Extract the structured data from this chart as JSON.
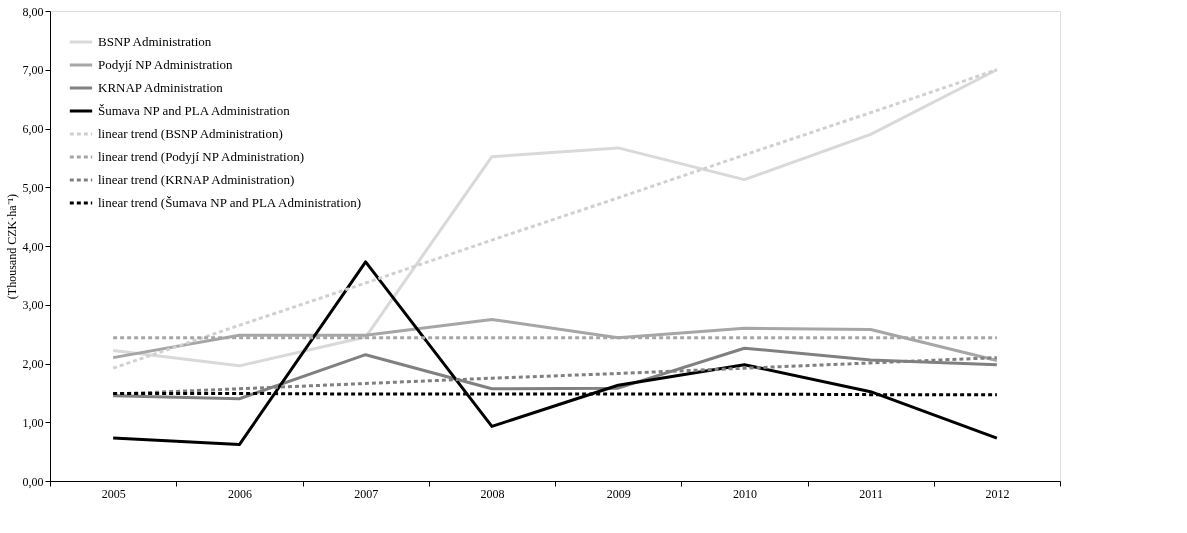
{
  "chart_data": {
    "type": "line",
    "ylabel": "(Thousand CZK·ha⁻¹)",
    "categories": [
      "2005",
      "2006",
      "2007",
      "2008",
      "2009",
      "2010",
      "2011",
      "2012"
    ],
    "series": [
      {
        "name": "BSNP Administration",
        "color": "#d9d9d9",
        "values": [
          2.22,
          1.96,
          2.45,
          5.52,
          5.67,
          5.13,
          5.9,
          7.0
        ]
      },
      {
        "name": "Podyjí NP Administration",
        "color": "#a6a6a6",
        "values": [
          2.1,
          2.48,
          2.48,
          2.75,
          2.44,
          2.6,
          2.58,
          2.05
        ]
      },
      {
        "name": "KRNAP Administration",
        "color": "#808080",
        "values": [
          1.45,
          1.4,
          2.15,
          1.57,
          1.58,
          2.26,
          2.06,
          1.98
        ]
      },
      {
        "name": "Šumava NP and PLA Administration",
        "color": "#000000",
        "values": [
          0.73,
          0.62,
          3.73,
          0.93,
          1.63,
          1.98,
          1.52,
          0.73
        ]
      },
      {
        "name": "linear trend (BSNP Administration)",
        "color": "#d0d0d0",
        "line_style": "dashed",
        "values": [
          1.92,
          2.65,
          3.37,
          4.1,
          4.82,
          5.55,
          6.27,
          7.0
        ]
      },
      {
        "name": "linear trend (Podyjí NP Administration)",
        "color": "#a6a6a6",
        "line_style": "dashed",
        "values": [
          2.44,
          2.44,
          2.44,
          2.44,
          2.44,
          2.44,
          2.44,
          2.44
        ]
      },
      {
        "name": "linear trend (KRNAP Administration)",
        "color": "#808080",
        "line_style": "dashed",
        "values": [
          1.48,
          1.57,
          1.66,
          1.75,
          1.83,
          1.92,
          2.01,
          2.1
        ]
      },
      {
        "name": "linear trend (Šumava NP and PLA Administration)",
        "color": "#000000",
        "line_style": "dashed",
        "values": [
          1.49,
          1.49,
          1.48,
          1.48,
          1.48,
          1.48,
          1.47,
          1.47
        ]
      }
    ],
    "ylim": [
      0,
      8
    ],
    "yticks": [
      {
        "value": 0,
        "label": "0,00"
      },
      {
        "value": 1,
        "label": "1,00"
      },
      {
        "value": 2,
        "label": "2,00"
      },
      {
        "value": 3,
        "label": "3,00"
      },
      {
        "value": 4,
        "label": "4,00"
      },
      {
        "value": 5,
        "label": "5,00"
      },
      {
        "value": 6,
        "label": "6,00"
      },
      {
        "value": 7,
        "label": "7,00"
      },
      {
        "value": 8,
        "label": "8,00"
      }
    ],
    "grid": false,
    "legend": "top left",
    "marker": "none",
    "line_style": "solid"
  }
}
